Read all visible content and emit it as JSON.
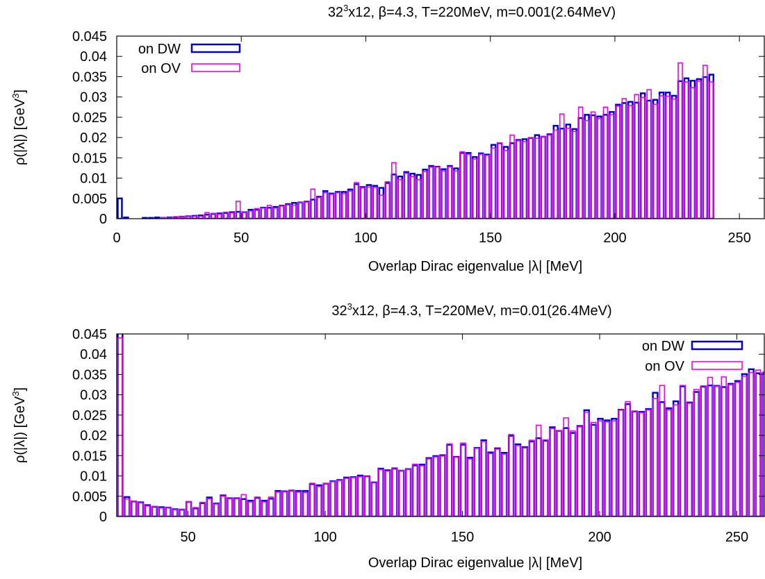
{
  "chart_data": [
    {
      "type": "bar",
      "title": {
        "pre": "32",
        "sup": "3",
        "post": "x12, β=4.3, T=220MeV, m=0.001(2.64MeV)"
      },
      "xlabel": "Overlap Dirac eigenvalue |λ| [MeV]",
      "ylabel": {
        "pre": "ρ(|λ|) [GeV",
        "sup": "3",
        "post": "]"
      },
      "xlim": [
        0,
        260
      ],
      "ylim": [
        0,
        0.045
      ],
      "xticks": [
        0,
        50,
        100,
        150,
        200,
        250
      ],
      "yticks": [
        "0",
        "0.005",
        "0.01",
        "0.015",
        "0.02",
        "0.025",
        "0.03",
        "0.035",
        "0.04",
        "0.045"
      ],
      "legend_position": "top-left",
      "bin_width": 2.5,
      "x_start": 0,
      "series": [
        {
          "name": "on DW",
          "color": "#0000cc",
          "values": [
            0.005,
            0.0003,
            0,
            0,
            0.0002,
            0.0002,
            0.0003,
            0.0002,
            0.0003,
            0.0004,
            0.0005,
            0.0006,
            0.0007,
            0.0008,
            0.001,
            0.0012,
            0.0013,
            0.0014,
            0.0016,
            0.0017,
            0.0016,
            0.0022,
            0.0022,
            0.0027,
            0.0027,
            0.0029,
            0.0032,
            0.0036,
            0.0039,
            0.004,
            0.0042,
            0.0047,
            0.0054,
            0.0068,
            0.0062,
            0.0066,
            0.0066,
            0.0072,
            0.0085,
            0.0078,
            0.0083,
            0.0081,
            0.0076,
            0.0088,
            0.0109,
            0.0104,
            0.0115,
            0.0111,
            0.0108,
            0.0121,
            0.013,
            0.0128,
            0.0122,
            0.013,
            0.0124,
            0.0162,
            0.0162,
            0.0152,
            0.0161,
            0.0158,
            0.0182,
            0.0186,
            0.0177,
            0.0186,
            0.0194,
            0.0196,
            0.0199,
            0.0206,
            0.0202,
            0.0208,
            0.0229,
            0.0222,
            0.0232,
            0.0221,
            0.0248,
            0.0256,
            0.0255,
            0.0252,
            0.0256,
            0.0263,
            0.0281,
            0.0285,
            0.0288,
            0.0286,
            0.0309,
            0.0291,
            0.0293,
            0.0311,
            0.0311,
            0.0303,
            0.0339,
            0.0346,
            0.034,
            0.0344,
            0.0349,
            0.0355
          ]
        },
        {
          "name": "on OV",
          "color": "#ee00ee",
          "values": [
            0,
            0,
            0,
            0,
            0,
            0,
            0,
            0.0002,
            0.0002,
            0.0005,
            0.0005,
            0.0006,
            0.0006,
            0.0006,
            0.0015,
            0.0013,
            0.0011,
            0.0016,
            0.0014,
            0.0043,
            0.0016,
            0.0019,
            0.0025,
            0.0026,
            0.0033,
            0.0026,
            0.0031,
            0.0034,
            0.0033,
            0.004,
            0.0041,
            0.0073,
            0.0052,
            0.0064,
            0.006,
            0.0064,
            0.0061,
            0.0068,
            0.0089,
            0.0076,
            0.0078,
            0.0077,
            0.0058,
            0.0091,
            0.0138,
            0.0096,
            0.0112,
            0.0104,
            0.0096,
            0.0116,
            0.0127,
            0.0127,
            0.0118,
            0.0128,
            0.0118,
            0.0165,
            0.0159,
            0.0147,
            0.0159,
            0.0156,
            0.0174,
            0.0187,
            0.0168,
            0.0206,
            0.0192,
            0.019,
            0.02,
            0.0198,
            0.0203,
            0.0206,
            0.0218,
            0.0258,
            0.0223,
            0.0215,
            0.0275,
            0.0242,
            0.0263,
            0.0247,
            0.0275,
            0.0256,
            0.0277,
            0.0296,
            0.0279,
            0.0306,
            0.0299,
            0.0318,
            0.0282,
            0.0303,
            0.0302,
            0.0295,
            0.0384,
            0.0337,
            0.0323,
            0.0339,
            0.0378,
            0.0337
          ]
        }
      ]
    },
    {
      "type": "bar",
      "title": {
        "pre": "32",
        "sup": "3",
        "post": "x12, β=4.3, T=220MeV, m=0.01(26.4MeV)"
      },
      "xlabel": "Overlap Dirac eigenvalue |λ| [MeV]",
      "ylabel": {
        "pre": "ρ(|λ|) [GeV",
        "sup": "3",
        "post": "]"
      },
      "xlim": [
        24,
        260
      ],
      "ylim": [
        0,
        0.045
      ],
      "xticks": [
        50,
        100,
        150,
        200,
        250
      ],
      "yticks": [
        "0",
        "0.005",
        "0.01",
        "0.015",
        "0.02",
        "0.025",
        "0.03",
        "0.035",
        "0.04",
        "0.045"
      ],
      "legend_position": "top-right",
      "bin_width": 2.5,
      "x_start": 24,
      "series": [
        {
          "name": "on DW",
          "color": "#0000cc",
          "values": [
            0.0452,
            0.0048,
            0.0037,
            0.0035,
            0.0028,
            0.0024,
            0.0023,
            0.0022,
            0.0018,
            0.0017,
            0.0036,
            0.002,
            0.0033,
            0.0047,
            0.0032,
            0.0052,
            0.0045,
            0.0045,
            0.0043,
            0.0039,
            0.0046,
            0.0039,
            0.0044,
            0.0063,
            0.0062,
            0.0064,
            0.0063,
            0.0063,
            0.008,
            0.0077,
            0.0081,
            0.0087,
            0.009,
            0.0096,
            0.0097,
            0.0101,
            0.0099,
            0.0084,
            0.0118,
            0.0114,
            0.0118,
            0.0113,
            0.0117,
            0.0126,
            0.0128,
            0.0144,
            0.0149,
            0.0151,
            0.0177,
            0.0147,
            0.0177,
            0.0145,
            0.0169,
            0.0188,
            0.0158,
            0.0168,
            0.0157,
            0.0199,
            0.0178,
            0.0171,
            0.0185,
            0.0193,
            0.0187,
            0.022,
            0.0211,
            0.0218,
            0.0206,
            0.0223,
            0.0262,
            0.0226,
            0.0241,
            0.0237,
            0.0241,
            0.0263,
            0.0277,
            0.0259,
            0.0258,
            0.0265,
            0.0305,
            0.0282,
            0.0267,
            0.0284,
            0.0321,
            0.0281,
            0.0307,
            0.032,
            0.0323,
            0.0322,
            0.0319,
            0.0327,
            0.0334,
            0.0351,
            0.0363,
            0.0353,
            0.0353
          ]
        },
        {
          "name": "on OV",
          "color": "#ee00ee",
          "values": [
            0.044,
            0.0043,
            0.0037,
            0.0034,
            0.0026,
            0.0025,
            0.0021,
            0.0022,
            0.0017,
            0.0018,
            0.0036,
            0.0022,
            0.0035,
            0.0044,
            0.0031,
            0.005,
            0.0044,
            0.0044,
            0.0054,
            0.0036,
            0.0048,
            0.0036,
            0.0048,
            0.006,
            0.0061,
            0.0065,
            0.006,
            0.0059,
            0.0082,
            0.0074,
            0.0081,
            0.0086,
            0.0089,
            0.0094,
            0.0096,
            0.0098,
            0.0098,
            0.0083,
            0.0116,
            0.0112,
            0.012,
            0.0113,
            0.0117,
            0.0129,
            0.0125,
            0.0142,
            0.0147,
            0.0149,
            0.0179,
            0.0146,
            0.0181,
            0.0142,
            0.0168,
            0.0185,
            0.0155,
            0.0166,
            0.0154,
            0.0202,
            0.0175,
            0.0169,
            0.0188,
            0.0225,
            0.0189,
            0.0217,
            0.0211,
            0.0243,
            0.0211,
            0.0221,
            0.0257,
            0.0232,
            0.0236,
            0.0233,
            0.0236,
            0.0262,
            0.0283,
            0.026,
            0.0256,
            0.0263,
            0.0291,
            0.0323,
            0.0263,
            0.0275,
            0.0323,
            0.0279,
            0.0313,
            0.0322,
            0.0343,
            0.0321,
            0.0344,
            0.0325,
            0.0331,
            0.0346,
            0.0355,
            0.0361,
            0.0356
          ]
        }
      ]
    }
  ]
}
